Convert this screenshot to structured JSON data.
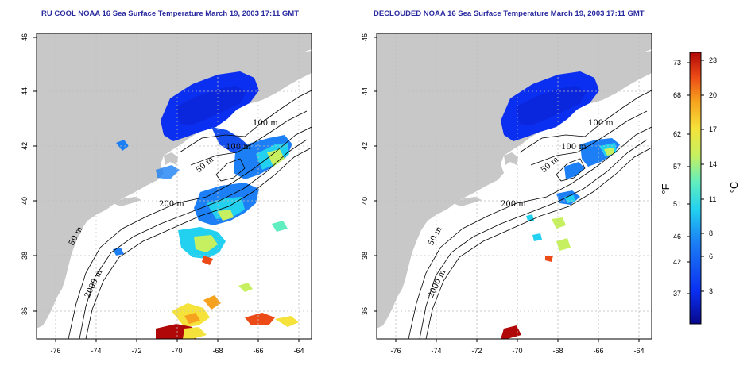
{
  "panels": [
    {
      "title": "RU COOL NOAA 16 Sea Surface Temperature March 19, 2003 17:11 GMT",
      "contour_labels": [
        "100 m",
        "100 m",
        "50 m",
        "200 m",
        "50 m",
        "2000 m"
      ]
    },
    {
      "title": "DECLOUDED NOAA 16 Sea Surface Temperature March 19, 2003 17:11 GMT",
      "contour_labels": [
        "100 m",
        "100 m",
        "50 m",
        "200 m",
        "50 m",
        "2000 m"
      ]
    }
  ],
  "lon_ticks": [
    "-76",
    "-74",
    "-72",
    "-70",
    "-68",
    "-66",
    "-64"
  ],
  "lat_ticks": [
    "46",
    "44",
    "42",
    "40",
    "38",
    "36"
  ],
  "colorbar": {
    "f_label": "°F",
    "c_label": "°C",
    "f_ticks": [
      "73",
      "68",
      "62",
      "57",
      "51",
      "46",
      "42",
      "37"
    ],
    "c_ticks": [
      "23",
      "20",
      "17",
      "14",
      "11",
      "8",
      "6",
      "3"
    ],
    "colors": [
      "#08088a",
      "#0a2ff0",
      "#1c7ff5",
      "#22d0f0",
      "#60eec0",
      "#c6f060",
      "#f5e23a",
      "#f7a21e",
      "#ec4a16",
      "#b00808"
    ]
  },
  "colors": {
    "land": "#c8c8c8",
    "title": "#2a2aa0",
    "grid": "#bdbdbd"
  }
}
